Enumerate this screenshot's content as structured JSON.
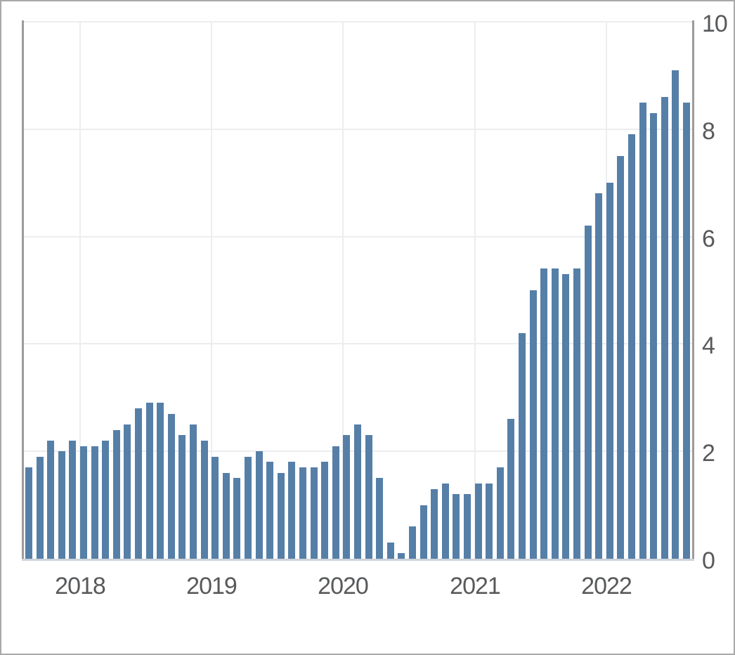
{
  "chart_data": {
    "type": "bar",
    "title": "",
    "xlabel": "",
    "ylabel": "",
    "x": [
      "2017-07",
      "2017-08",
      "2017-09",
      "2017-10",
      "2017-11",
      "2017-12",
      "2018-01",
      "2018-02",
      "2018-03",
      "2018-04",
      "2018-05",
      "2018-06",
      "2018-07",
      "2018-08",
      "2018-09",
      "2018-10",
      "2018-11",
      "2018-12",
      "2019-01",
      "2019-02",
      "2019-03",
      "2019-04",
      "2019-05",
      "2019-06",
      "2019-07",
      "2019-08",
      "2019-09",
      "2019-10",
      "2019-11",
      "2019-12",
      "2020-01",
      "2020-02",
      "2020-03",
      "2020-04",
      "2020-05",
      "2020-06",
      "2020-07",
      "2020-08",
      "2020-09",
      "2020-10",
      "2020-11",
      "2020-12",
      "2021-01",
      "2021-02",
      "2021-03",
      "2021-04",
      "2021-05",
      "2021-06",
      "2021-07",
      "2021-08",
      "2021-09",
      "2021-10",
      "2021-11",
      "2021-12",
      "2022-01",
      "2022-02",
      "2022-03",
      "2022-04",
      "2022-05",
      "2022-06",
      "2022-07"
    ],
    "values": [
      1.7,
      1.9,
      2.2,
      2.0,
      2.2,
      2.1,
      2.1,
      2.2,
      2.4,
      2.5,
      2.8,
      2.9,
      2.9,
      2.7,
      2.3,
      2.5,
      2.2,
      1.9,
      1.6,
      1.5,
      1.9,
      2.0,
      1.8,
      1.6,
      1.8,
      1.7,
      1.7,
      1.8,
      2.1,
      2.3,
      2.5,
      2.3,
      1.5,
      0.3,
      0.1,
      0.6,
      1.0,
      1.3,
      1.4,
      1.2,
      1.2,
      1.4,
      1.4,
      1.7,
      2.6,
      4.2,
      5.0,
      5.4,
      5.4,
      5.3,
      5.4,
      6.2,
      6.8,
      7.0,
      7.5,
      7.9,
      8.5,
      8.3,
      8.6,
      9.1,
      8.5
    ],
    "x_tick_labels": [
      "2018",
      "2019",
      "2020",
      "2021",
      "2022"
    ],
    "y_ticks": [
      0,
      2,
      4,
      6,
      8,
      10
    ],
    "ylim": [
      0,
      10
    ],
    "grid": true,
    "legend_position": "none",
    "y_axis_side": "right",
    "bar_color": "#567fa7",
    "gridline_color": "#ecedef",
    "axis_line_color": "#9b9b9b",
    "zero_line_color": "#ccd3db",
    "tick_label_color": "#58595b",
    "frame_border_color": "#a9a9a9"
  }
}
